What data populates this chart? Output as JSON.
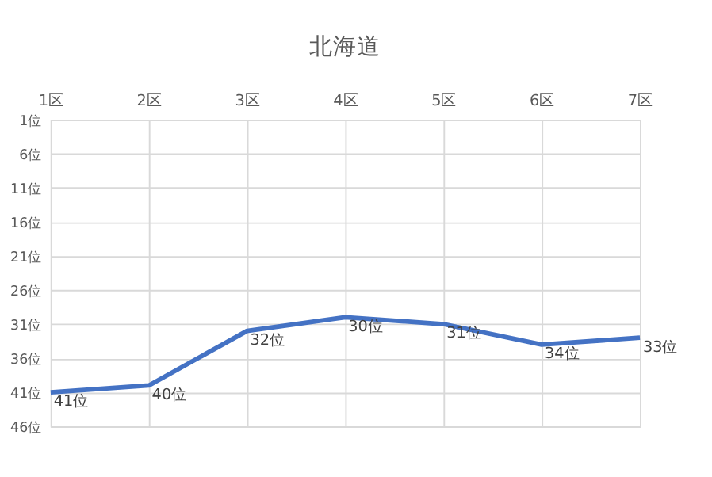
{
  "chart_data": {
    "type": "line",
    "title": "北海道",
    "categories": [
      "1区",
      "2区",
      "3区",
      "4区",
      "5区",
      "6区",
      "7区"
    ],
    "series": [
      {
        "color": "#4472c4",
        "values": [
          41,
          40,
          32,
          30,
          31,
          34,
          33
        ],
        "value_labels": [
          "41位",
          "40位",
          "32位",
          "30位",
          "31位",
          "34位",
          "33位"
        ]
      }
    ],
    "ylim": [
      46,
      1
    ],
    "yticks": [
      {
        "value": 1,
        "label": "1位"
      },
      {
        "value": 6,
        "label": "6位"
      },
      {
        "value": 11,
        "label": "11位"
      },
      {
        "value": 16,
        "label": "16位"
      },
      {
        "value": 21,
        "label": "21位"
      },
      {
        "value": 26,
        "label": "26位"
      },
      {
        "value": 31,
        "label": "31位"
      },
      {
        "value": 36,
        "label": "36位"
      },
      {
        "value": 41,
        "label": "41位"
      },
      {
        "value": 46,
        "label": "46位"
      }
    ],
    "grid": true,
    "marker": "none",
    "line_style": "solid"
  }
}
